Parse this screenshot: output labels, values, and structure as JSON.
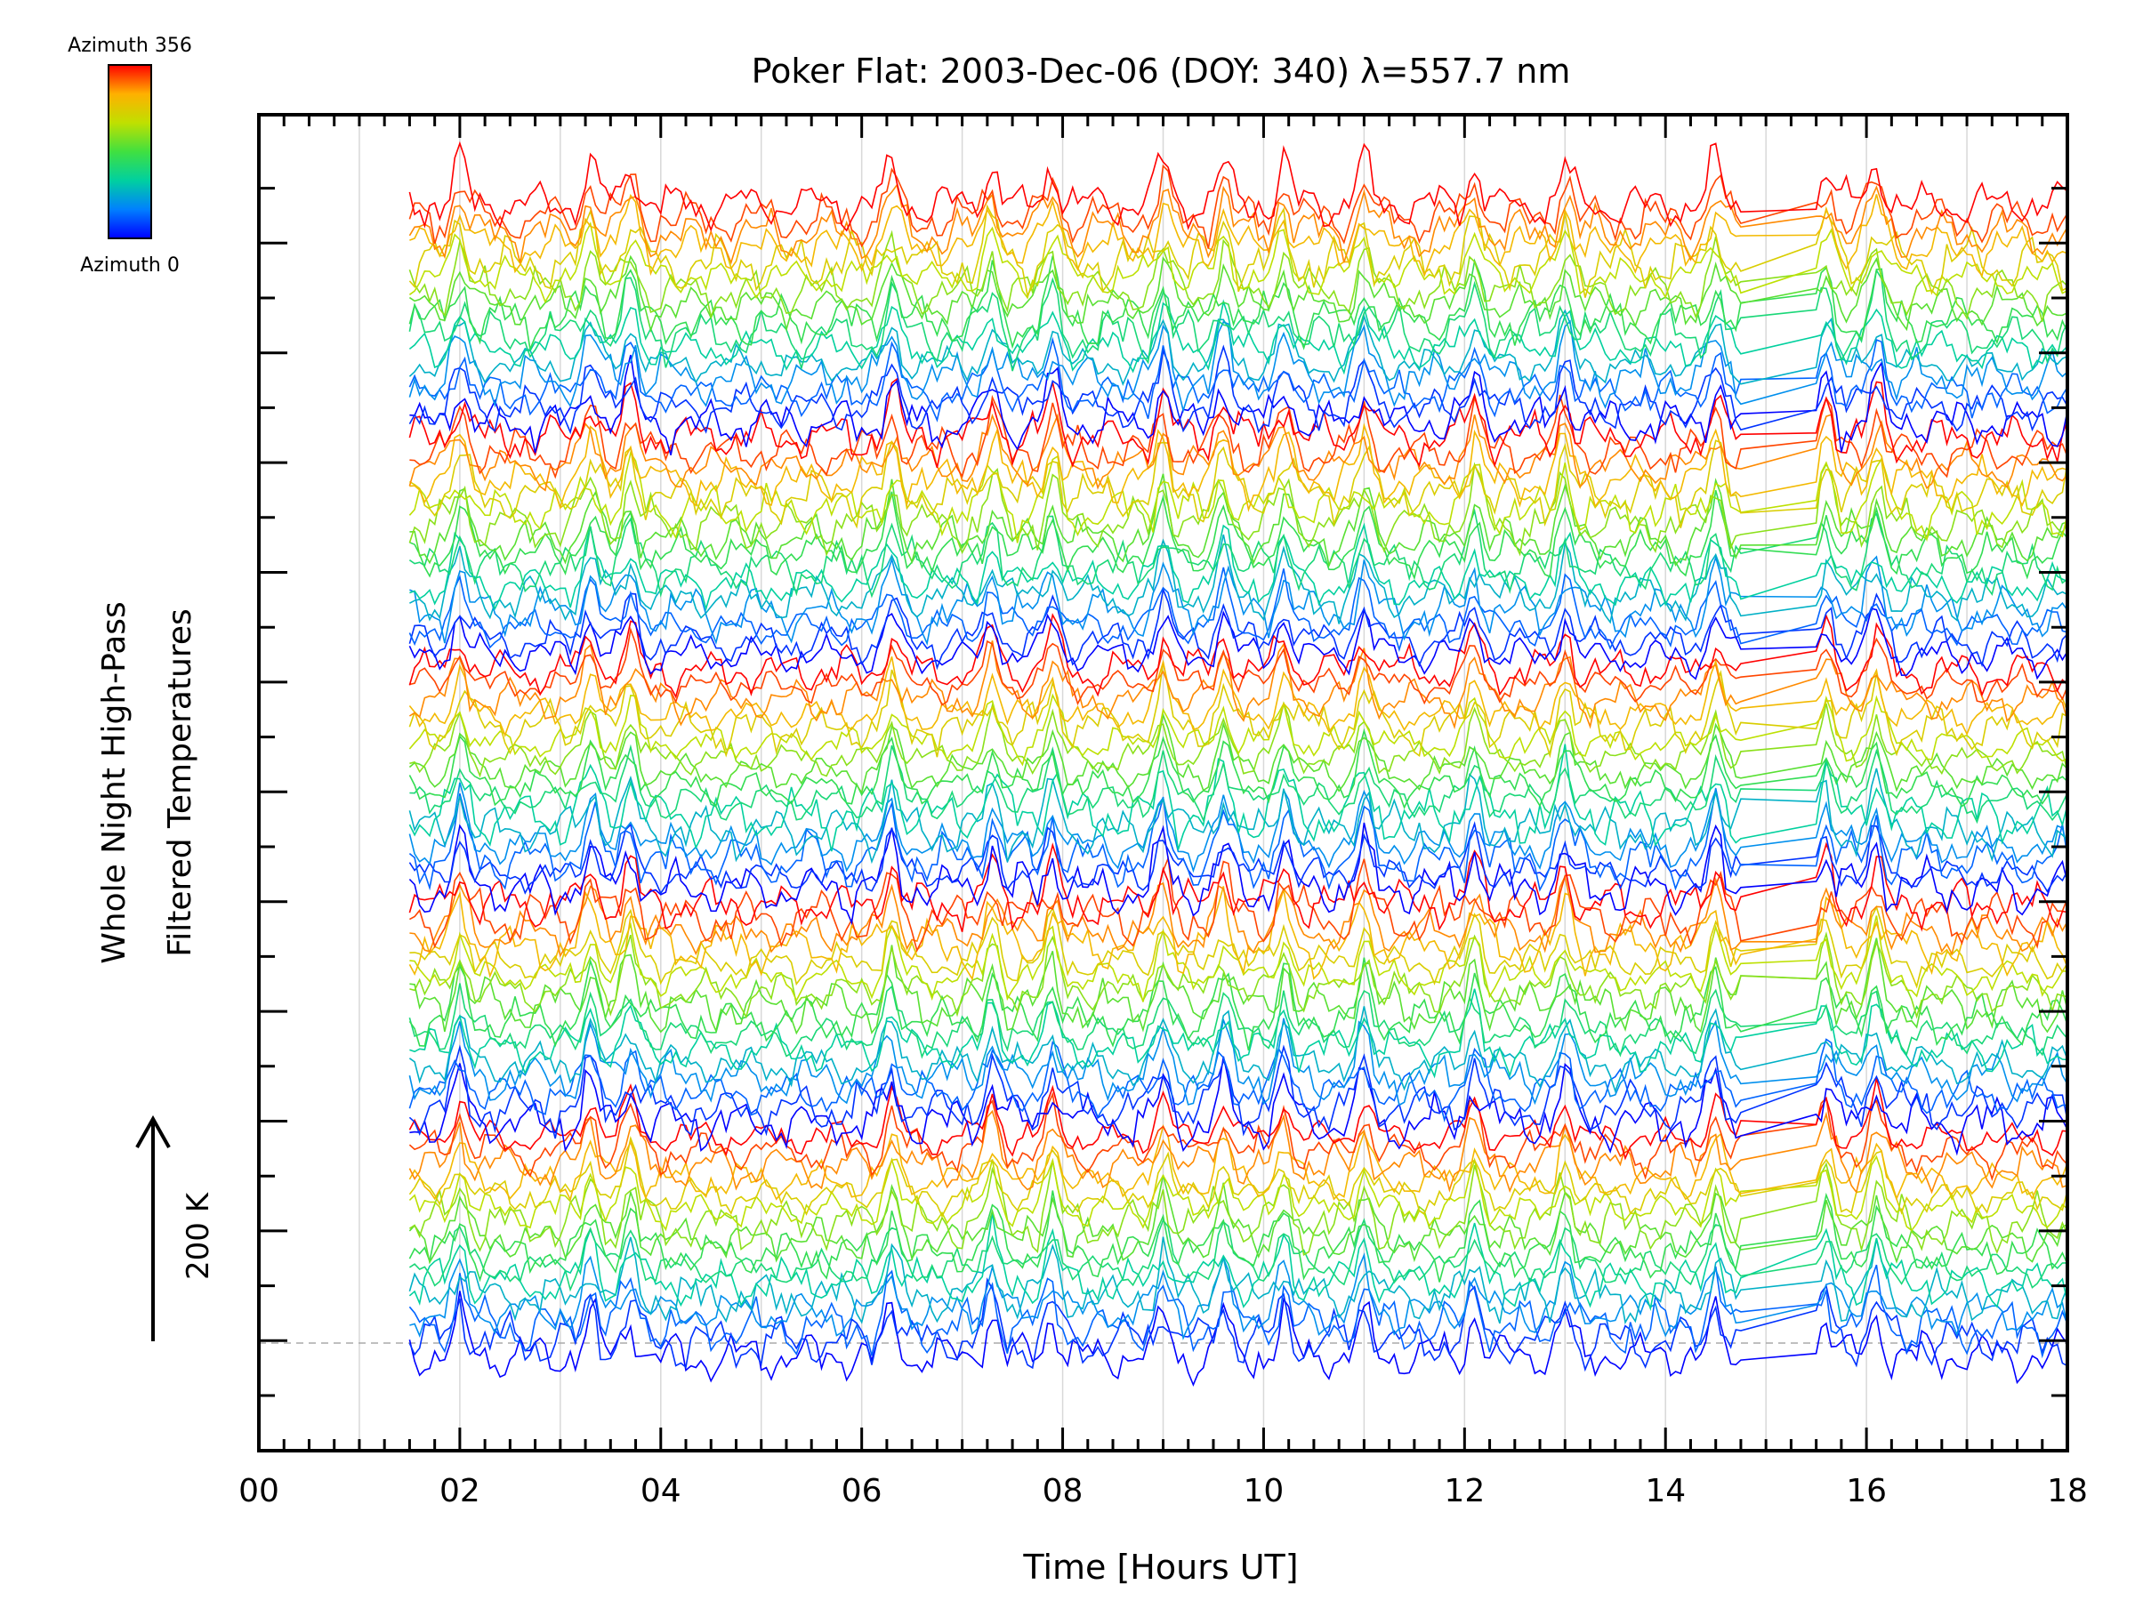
{
  "chart_data": {
    "type": "line",
    "title": "Poker Flat: 2003-Dec-06 (DOY: 340) λ=557.7 nm",
    "xlabel": "Time [Hours UT]",
    "ylabel_line1": "Whole Night High-Pass",
    "ylabel_line2": "Filtered Temperatures",
    "scale_label": "200 K",
    "colorbar": {
      "top_label": "Azimuth 356",
      "bottom_label": "Azimuth 0",
      "colors": [
        "#0000ff",
        "#0080ff",
        "#00d0a0",
        "#40e040",
        "#c0e000",
        "#ffb000",
        "#ff0000"
      ]
    },
    "xlim": [
      0,
      18
    ],
    "x_ticks": [
      "00",
      "02",
      "04",
      "06",
      "08",
      "10",
      "12",
      "14",
      "16",
      "18"
    ],
    "x_tick_values": [
      0,
      2,
      4,
      6,
      8,
      10,
      12,
      14,
      16,
      18
    ],
    "y_axis_tick_labels": "none",
    "grid": "vertical lines every hour",
    "data_start_hour": 1.5,
    "data_end_hour": 18,
    "series_count": 80,
    "series_color_by": "azimuth (0 = blue, 356 = red)",
    "common_peaks_hours": [
      2.0,
      3.3,
      3.7,
      6.3,
      7.3,
      7.9,
      9.0,
      9.6,
      10.2,
      11.0,
      12.1,
      13.0,
      14.5,
      15.6,
      16.1
    ],
    "data_gap_hours": [
      14.8,
      15.5
    ]
  }
}
